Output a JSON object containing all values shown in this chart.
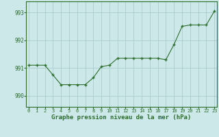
{
  "x": [
    0,
    1,
    2,
    3,
    4,
    5,
    6,
    7,
    8,
    9,
    10,
    11,
    12,
    13,
    14,
    15,
    16,
    17,
    18,
    19,
    20,
    21,
    22,
    23
  ],
  "y": [
    991.1,
    991.1,
    991.1,
    990.75,
    990.4,
    990.4,
    990.4,
    990.4,
    990.65,
    991.05,
    991.1,
    991.35,
    991.35,
    991.35,
    991.35,
    991.35,
    991.35,
    991.3,
    991.85,
    992.5,
    992.55,
    992.55,
    992.55,
    993.05
  ],
  "line_color": "#2d6e2d",
  "marker": "+",
  "bg_color": "#cce8e8",
  "grid_color": "#aacccc",
  "axis_color": "#2d6e2d",
  "xlabel": "Graphe pression niveau de la mer (hPa)",
  "ytick_labels": [
    "990",
    "991",
    "992",
    "993"
  ],
  "ytick_vals": [
    990,
    991,
    992,
    993
  ],
  "xticks": [
    0,
    1,
    2,
    3,
    4,
    5,
    6,
    7,
    8,
    9,
    10,
    11,
    12,
    13,
    14,
    15,
    16,
    17,
    18,
    19,
    20,
    21,
    22,
    23
  ],
  "ylim": [
    989.6,
    993.4
  ],
  "xlim": [
    -0.3,
    23.3
  ],
  "figsize": [
    3.2,
    2.0
  ],
  "dpi": 100
}
